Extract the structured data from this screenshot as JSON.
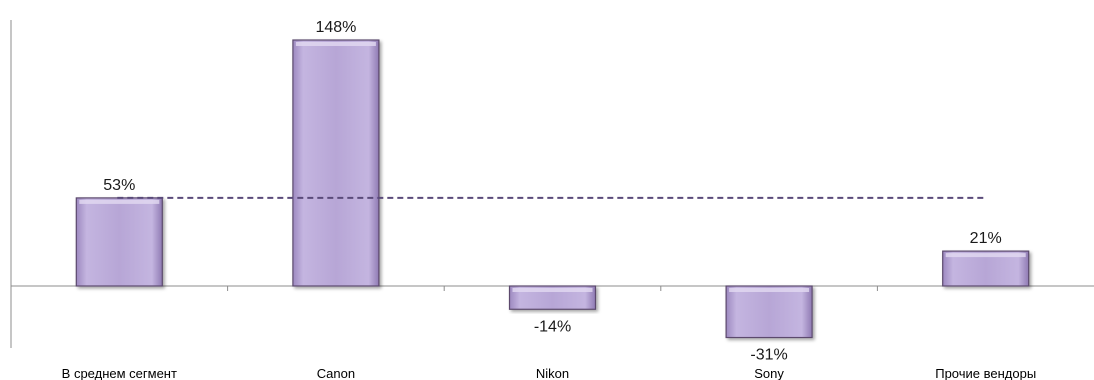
{
  "chart_data": {
    "type": "bar",
    "categories": [
      "В среднем сегмент",
      "Canon",
      "Nikon",
      "Sony",
      "Прочие вендоры"
    ],
    "values": [
      53,
      148,
      -14,
      -31,
      21
    ],
    "value_labels": [
      "53%",
      "148%",
      "-14%",
      "-31%",
      "21%"
    ],
    "reference_line": {
      "value": 53,
      "style": "dashed"
    },
    "ylim": [
      -42,
      150
    ],
    "grid": false,
    "legend": "none",
    "title": "",
    "xlabel": "",
    "ylabel": "",
    "colors": {
      "bar_fill": "#b7a6d6",
      "bar_edge": "#5b4a6d",
      "reference_line": "#5a4a7a",
      "axis": "#8c8c8c"
    }
  }
}
